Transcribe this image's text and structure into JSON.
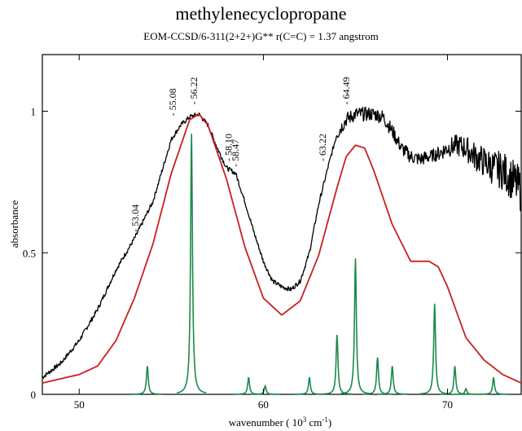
{
  "chart_data": {
    "type": "line",
    "title": "methylenecyclopropane",
    "subtitle": "EOM-CCSD/6-311(2+2+)G**   r(C=C) = 1.37 angstrom",
    "xlabel": "wavenumber ( 10",
    "xlabel_sup1": "3",
    "xlabel_mid": " cm",
    "xlabel_sup2": "-1",
    "xlabel_end": ")",
    "ylabel": "absorbance",
    "xlim": [
      48,
      74
    ],
    "ylim": [
      0,
      1.2
    ],
    "x_ticks": [
      50,
      60,
      70
    ],
    "x_tick_labels": [
      "50",
      "60",
      "70"
    ],
    "y_ticks": [
      0,
      0.5,
      1
    ],
    "y_tick_labels": [
      "0",
      "0.5",
      "1"
    ],
    "colors": {
      "experiment": "#000000",
      "computed_envelope": "#c8201e",
      "stick_spectrum": "#1b8a4a"
    },
    "series": [
      {
        "role": "experiment",
        "x": [
          48,
          49,
          50,
          51,
          52,
          53,
          54,
          55,
          55.5,
          56,
          56.5,
          57,
          57.5,
          58,
          58.5,
          59,
          59.5,
          60,
          60.5,
          61,
          61.5,
          62,
          62.5,
          63,
          63.5,
          64,
          64.5,
          65,
          65.5,
          66,
          66.5,
          67,
          67.5,
          68,
          68.5,
          69,
          69.5,
          70,
          70.5,
          71,
          71.5,
          72,
          72.5,
          73,
          73.5,
          74
        ],
        "y": [
          0.06,
          0.11,
          0.19,
          0.3,
          0.44,
          0.55,
          0.68,
          0.9,
          0.95,
          0.98,
          0.99,
          0.95,
          0.87,
          0.8,
          0.78,
          0.68,
          0.57,
          0.47,
          0.4,
          0.38,
          0.37,
          0.4,
          0.5,
          0.67,
          0.8,
          0.92,
          0.97,
          0.99,
          0.99,
          0.99,
          0.98,
          0.93,
          0.87,
          0.84,
          0.83,
          0.84,
          0.85,
          0.87,
          0.88,
          0.87,
          0.84,
          0.82,
          0.8,
          0.79,
          0.76,
          0.72
        ]
      },
      {
        "role": "computed_envelope",
        "x": [
          48,
          50,
          51,
          52,
          53,
          54,
          55,
          56,
          56.5,
          57,
          58,
          59,
          60,
          61,
          62,
          63,
          64,
          64.5,
          65,
          65.5,
          66,
          67,
          68,
          69,
          69.5,
          70,
          71,
          72,
          73,
          74
        ],
        "y": [
          0.04,
          0.07,
          0.1,
          0.19,
          0.34,
          0.53,
          0.78,
          0.97,
          0.99,
          0.95,
          0.76,
          0.52,
          0.34,
          0.28,
          0.33,
          0.49,
          0.73,
          0.84,
          0.88,
          0.87,
          0.79,
          0.6,
          0.47,
          0.47,
          0.45,
          0.38,
          0.2,
          0.12,
          0.07,
          0.04
        ]
      },
      {
        "role": "stick_spectrum",
        "x": [
          53.7,
          56.1,
          59.2,
          60.1,
          62.5,
          64.0,
          65.0,
          66.2,
          67.0,
          69.3,
          70.4,
          71.0,
          72.5
        ],
        "y": [
          0.1,
          0.92,
          0.06,
          0.03,
          0.06,
          0.21,
          0.48,
          0.13,
          0.1,
          0.32,
          0.1,
          0.02,
          0.06
        ]
      }
    ],
    "annotations": [
      {
        "label": "53.04",
        "x": 53.04,
        "y": 0.55
      },
      {
        "label": "55.08",
        "x": 55.08,
        "y": 0.96
      },
      {
        "label": "56.22",
        "x": 56.22,
        "y": 1.0
      },
      {
        "label": "58.10",
        "x": 58.1,
        "y": 0.8
      },
      {
        "label": "58.47",
        "x": 58.47,
        "y": 0.78
      },
      {
        "label": "63.22",
        "x": 63.22,
        "y": 0.8
      },
      {
        "label": "64.49",
        "x": 64.49,
        "y": 1.0
      }
    ]
  }
}
